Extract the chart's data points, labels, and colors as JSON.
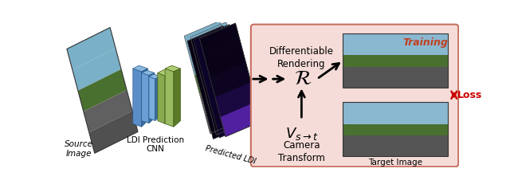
{
  "fig_width": 6.4,
  "fig_height": 2.36,
  "dpi": 100,
  "bg_color": "#ffffff",
  "training_box_color": "#f5dcd8",
  "training_box_edge": "#c87060",
  "training_text": "Training",
  "training_text_color": "#c04020",
  "training_text_fontsize": 9,
  "source_label": "Source\nImage",
  "cnn_label": "LDI Prediction\nCNN",
  "predicted_label": "Predicted LDI",
  "loss_label": "Loss",
  "target_label": "Target Image",
  "diff_render_line1": "Differentiable",
  "diff_render_line2": "Rendering",
  "camera_v": "$V_{s\\rightarrow t}$",
  "camera_line2": "Camera",
  "camera_line3": "Transform",
  "arrow_color": "#000000",
  "loss_arrow_color": "#cc0000",
  "label_fontsize": 7,
  "cnn_blue1": "#5b8ec8",
  "cnn_blue2": "#6a9ed4",
  "cnn_blue3": "#79aede",
  "cnn_green1": "#8aaa50",
  "cnn_green2": "#9aba60",
  "scene_sky": "#8ab8d0",
  "scene_tree": "#4a7030",
  "scene_road": "#505050",
  "pred_dark1": "#0a0318",
  "pred_dark2": "#100520",
  "pred_dark3": "#160830",
  "pred_purple": "#5020a0",
  "pred_magenta": "#c040b0"
}
